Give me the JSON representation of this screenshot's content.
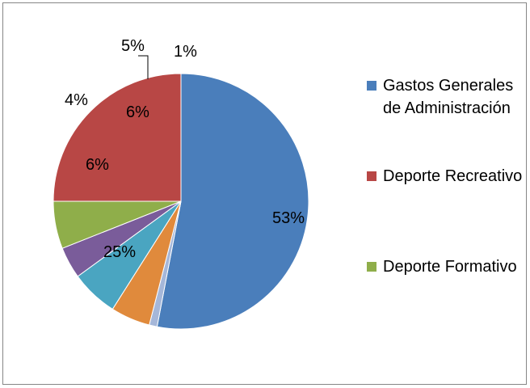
{
  "chart_data": {
    "type": "pie",
    "title": "",
    "legend_position": "right",
    "slices": [
      {
        "name": "Gastos Generales de Administración",
        "value": 53,
        "label": "53%",
        "color": "#4a7ebb"
      },
      {
        "name": "",
        "value": 1,
        "label": "1%",
        "color": "#a5b7d9"
      },
      {
        "name": "",
        "value": 5,
        "label": "5%",
        "color": "#e08a3c"
      },
      {
        "name": "",
        "value": 6,
        "label": "6%",
        "color": "#4aa5c1"
      },
      {
        "name": "",
        "value": 4,
        "label": "4%",
        "color": "#7a5c9a"
      },
      {
        "name": "",
        "value": 6,
        "label": "6%",
        "color": "#8fae4a"
      },
      {
        "name": "Deporte Recreativo",
        "value": 25,
        "label": "25%",
        "color": "#b84745"
      }
    ],
    "legend": [
      {
        "label": "Gastos Generales de Administración",
        "color": "#4a7ebb"
      },
      {
        "label": "Deporte Recreativo",
        "color": "#b84745"
      },
      {
        "label": "Deporte Formativo",
        "color": "#8fae4a"
      }
    ]
  }
}
